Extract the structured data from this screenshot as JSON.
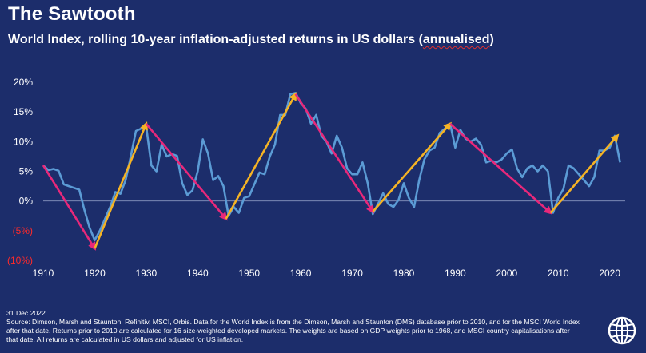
{
  "header": {
    "title": "The Sawtooth",
    "subtitle_main": "World Index, rolling 10-year inflation-adjusted returns in US dollars (",
    "subtitle_annual": "annualised",
    "subtitle_close": ")"
  },
  "footer": {
    "date": "31 Dec 2022",
    "source": "Source: Dimson, Marsh and Staunton, Refinitiv, MSCI, Orbis. Data for the World Index is from the Dimson, Marsh and Staunton (DMS) database prior to 2010, and for the MSCI World Index after that date. Returns prior to 2010 are calculated for 16 size-weighted developed markets. The weights are based on GDP weights prior to 1968, and MSCI country capitalisations after that date. All returns are calculated in US dollars and adjusted for US inflation."
  },
  "logo_icon": "globe-icon",
  "colors": {
    "background": "#1c2d6b",
    "line": "#5b9bd5",
    "down_arrow": "#e8287a",
    "up_arrow": "#f5b324",
    "negative_label": "#ff2a2a"
  },
  "chart_data": {
    "type": "line",
    "title": "The Sawtooth",
    "xlabel": "",
    "ylabel": "",
    "xlim": [
      1910,
      2023
    ],
    "ylim": [
      -10,
      20
    ],
    "x_ticks": [
      1910,
      1920,
      1930,
      1940,
      1950,
      1960,
      1970,
      1980,
      1990,
      2000,
      2010,
      2020
    ],
    "y_ticks": [
      {
        "value": 20,
        "label": "20%"
      },
      {
        "value": 15,
        "label": "15%"
      },
      {
        "value": 10,
        "label": "10%"
      },
      {
        "value": 5,
        "label": "5%"
      },
      {
        "value": 0,
        "label": "0%"
      },
      {
        "value": -5,
        "label": "(5%)"
      },
      {
        "value": -10,
        "label": "(10%)"
      }
    ],
    "series": [
      {
        "name": "World Index rolling 10-year real return",
        "x": [
          1910,
          1911,
          1912,
          1913,
          1914,
          1915,
          1916,
          1917,
          1918,
          1919,
          1920,
          1921,
          1922,
          1923,
          1924,
          1925,
          1926,
          1927,
          1928,
          1929,
          1930,
          1931,
          1932,
          1933,
          1934,
          1935,
          1936,
          1937,
          1938,
          1939,
          1940,
          1941,
          1942,
          1943,
          1944,
          1945,
          1946,
          1947,
          1948,
          1949,
          1950,
          1951,
          1952,
          1953,
          1954,
          1955,
          1956,
          1957,
          1958,
          1959,
          1960,
          1961,
          1962,
          1963,
          1964,
          1965,
          1966,
          1967,
          1968,
          1969,
          1970,
          1971,
          1972,
          1973,
          1974,
          1975,
          1976,
          1977,
          1978,
          1979,
          1980,
          1981,
          1982,
          1983,
          1984,
          1985,
          1986,
          1987,
          1988,
          1989,
          1990,
          1991,
          1992,
          1993,
          1994,
          1995,
          1996,
          1997,
          1998,
          1999,
          2000,
          2001,
          2002,
          2003,
          2004,
          2005,
          2006,
          2007,
          2008,
          2009,
          2010,
          2011,
          2012,
          2013,
          2014,
          2015,
          2016,
          2017,
          2018,
          2019,
          2020,
          2021,
          2022
        ],
        "values": [
          6,
          5.2,
          5.4,
          5.1,
          2.8,
          2.5,
          2.2,
          1.9,
          -1.5,
          -4.5,
          -6.6,
          -5,
          -3,
          -1,
          1.5,
          1.2,
          3.5,
          7.5,
          11.8,
          12.2,
          12.6,
          6,
          5,
          9.5,
          7.5,
          7.9,
          7.6,
          3,
          1,
          1.8,
          5,
          10.4,
          8,
          3.5,
          4.2,
          2.5,
          -2.5,
          -1,
          -2,
          0.5,
          0.8,
          2.8,
          4.8,
          4.5,
          7.5,
          9.5,
          14.5,
          14.5,
          18,
          18.2,
          16.5,
          15.5,
          13,
          14.5,
          11,
          10,
          8,
          11,
          9,
          5.5,
          4.5,
          4.5,
          6.5,
          3,
          -2.2,
          -0.5,
          1.3,
          -0.5,
          -1,
          0.2,
          3,
          0.5,
          -1,
          3.5,
          7,
          8.5,
          9,
          11.5,
          12.2,
          13,
          9,
          12,
          10.5,
          10,
          10.5,
          9.5,
          6.5,
          6.8,
          6.5,
          7,
          8,
          8.7,
          5.5,
          4,
          5.5,
          6,
          5,
          6,
          5,
          -2,
          0.5,
          2,
          6,
          5.5,
          4.5,
          3.5,
          2.5,
          4,
          8.5,
          8.5,
          9,
          11,
          6.5
        ]
      }
    ],
    "annotations": [
      {
        "type": "arrow",
        "direction": "down",
        "from": [
          1910,
          6
        ],
        "to": [
          1920,
          -8
        ]
      },
      {
        "type": "arrow",
        "direction": "up",
        "from": [
          1920,
          -8
        ],
        "to": [
          1930,
          13
        ]
      },
      {
        "type": "arrow",
        "direction": "down",
        "from": [
          1930,
          13
        ],
        "to": [
          1945.5,
          -3
        ]
      },
      {
        "type": "arrow",
        "direction": "up",
        "from": [
          1945.5,
          -3
        ],
        "to": [
          1959,
          18
        ]
      },
      {
        "type": "arrow",
        "direction": "down",
        "from": [
          1959,
          18
        ],
        "to": [
          1974,
          -1.8
        ]
      },
      {
        "type": "arrow",
        "direction": "up",
        "from": [
          1974,
          -1.8
        ],
        "to": [
          1989,
          13
        ]
      },
      {
        "type": "arrow",
        "direction": "down",
        "from": [
          1989,
          13
        ],
        "to": [
          2008.5,
          -2
        ]
      },
      {
        "type": "arrow",
        "direction": "up",
        "from": [
          2008.5,
          -2
        ],
        "to": [
          2021.5,
          11
        ]
      }
    ]
  }
}
